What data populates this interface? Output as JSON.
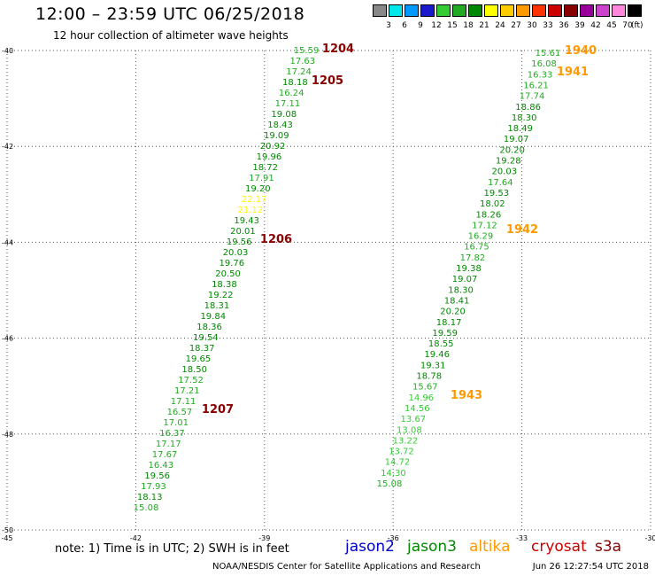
{
  "title": "12:00 – 23:59 UTC 06/25/2018",
  "subtitle": "12 hour collection of altimeter wave heights",
  "colorbar": {
    "colors": [
      "#888888",
      "#00e8e8",
      "#0099ff",
      "#1a1acc",
      "#33cc33",
      "#22aa22",
      "#008800",
      "#ffff00",
      "#ffcc00",
      "#ff9900",
      "#ff3300",
      "#cc0000",
      "#880000",
      "#990099",
      "#cc44cc",
      "#ff88dd",
      "#000000"
    ],
    "labels": [
      "3",
      "6",
      "9",
      "12",
      "15",
      "18",
      "21",
      "24",
      "27",
      "30",
      "33",
      "36",
      "39",
      "42",
      "45",
      "70"
    ],
    "unit": "(ft)"
  },
  "axes": {
    "lon_ticks": [
      -45,
      -42,
      -39,
      -36,
      -33,
      -30
    ],
    "lat_ticks": [
      -40,
      -42,
      -44,
      -46,
      -48,
      -50
    ],
    "lon_labels": [
      "-45",
      "-42",
      "-39",
      "-36",
      "-33",
      "-30"
    ],
    "lat_labels": [
      "-40",
      "-42",
      "-44",
      "-46",
      "-48",
      "-50"
    ]
  },
  "tracks": [
    {
      "values": [
        "15.59",
        "17.63",
        "17.24",
        "18.18",
        "16.24",
        "17.11",
        "19.08",
        "18.43",
        "19.09",
        "20.92",
        "19.96",
        "18.72",
        "17.91",
        "19.20",
        "22.17",
        "21.12",
        "19.43",
        "20.01",
        "19.56",
        "20.03",
        "19.76",
        "20.50",
        "18.38",
        "19.22",
        "18.31",
        "19.84",
        "18.36",
        "19.54",
        "18.37",
        "19.65",
        "18.50",
        "17.52",
        "17.21",
        "17.11",
        "16.57",
        "17.01",
        "16.37",
        "17.17",
        "17.67",
        "16.43",
        "19.56",
        "17.93",
        "18.13",
        "15.08"
      ]
    },
    {
      "values": [
        "15.61",
        "16.08",
        "16.33",
        "16.21",
        "17.74",
        "18.86",
        "18.30",
        "18.49",
        "19.07",
        "20.20",
        "19.28",
        "20.03",
        "17.64",
        "19.53",
        "18.02",
        "18.26",
        "17.12",
        "16.29",
        "16.75",
        "17.82",
        "19.38",
        "19.07",
        "18.30",
        "18.41",
        "20.20",
        "18.17",
        "19.59",
        "18.55",
        "19.46",
        "19.31",
        "18.78",
        "15.67",
        "14.96",
        "14.56",
        "13.67",
        "13.08",
        "13.22",
        "13.72",
        "14.72",
        "14.30",
        "15.08"
      ]
    }
  ],
  "passes": [
    {
      "label": "1204",
      "color": "#880000"
    },
    {
      "label": "1205",
      "color": "#880000"
    },
    {
      "label": "1206",
      "color": "#880000"
    },
    {
      "label": "1207",
      "color": "#880000"
    },
    {
      "label": "1940",
      "color": "#ff9900"
    },
    {
      "label": "1941",
      "color": "#ff9900"
    },
    {
      "label": "1942",
      "color": "#ff9900"
    },
    {
      "label": "1943",
      "color": "#ff9900"
    }
  ],
  "note": "note:  1) Time is in UTC;  2) SWH is in feet",
  "satellites": [
    {
      "name": "jason2",
      "color": "#0000cc"
    },
    {
      "name": "jason3",
      "color": "#008800"
    },
    {
      "name": "altika",
      "color": "#ff9900"
    },
    {
      "name": "cryosat",
      "color": "#cc0000"
    },
    {
      "name": "s3a",
      "color": "#880000"
    }
  ],
  "footer": {
    "credit": "NOAA/NESDIS Center for Satellite Applications and Research",
    "timestamp": "Jun 26 12:27:54 UTC 2018"
  }
}
